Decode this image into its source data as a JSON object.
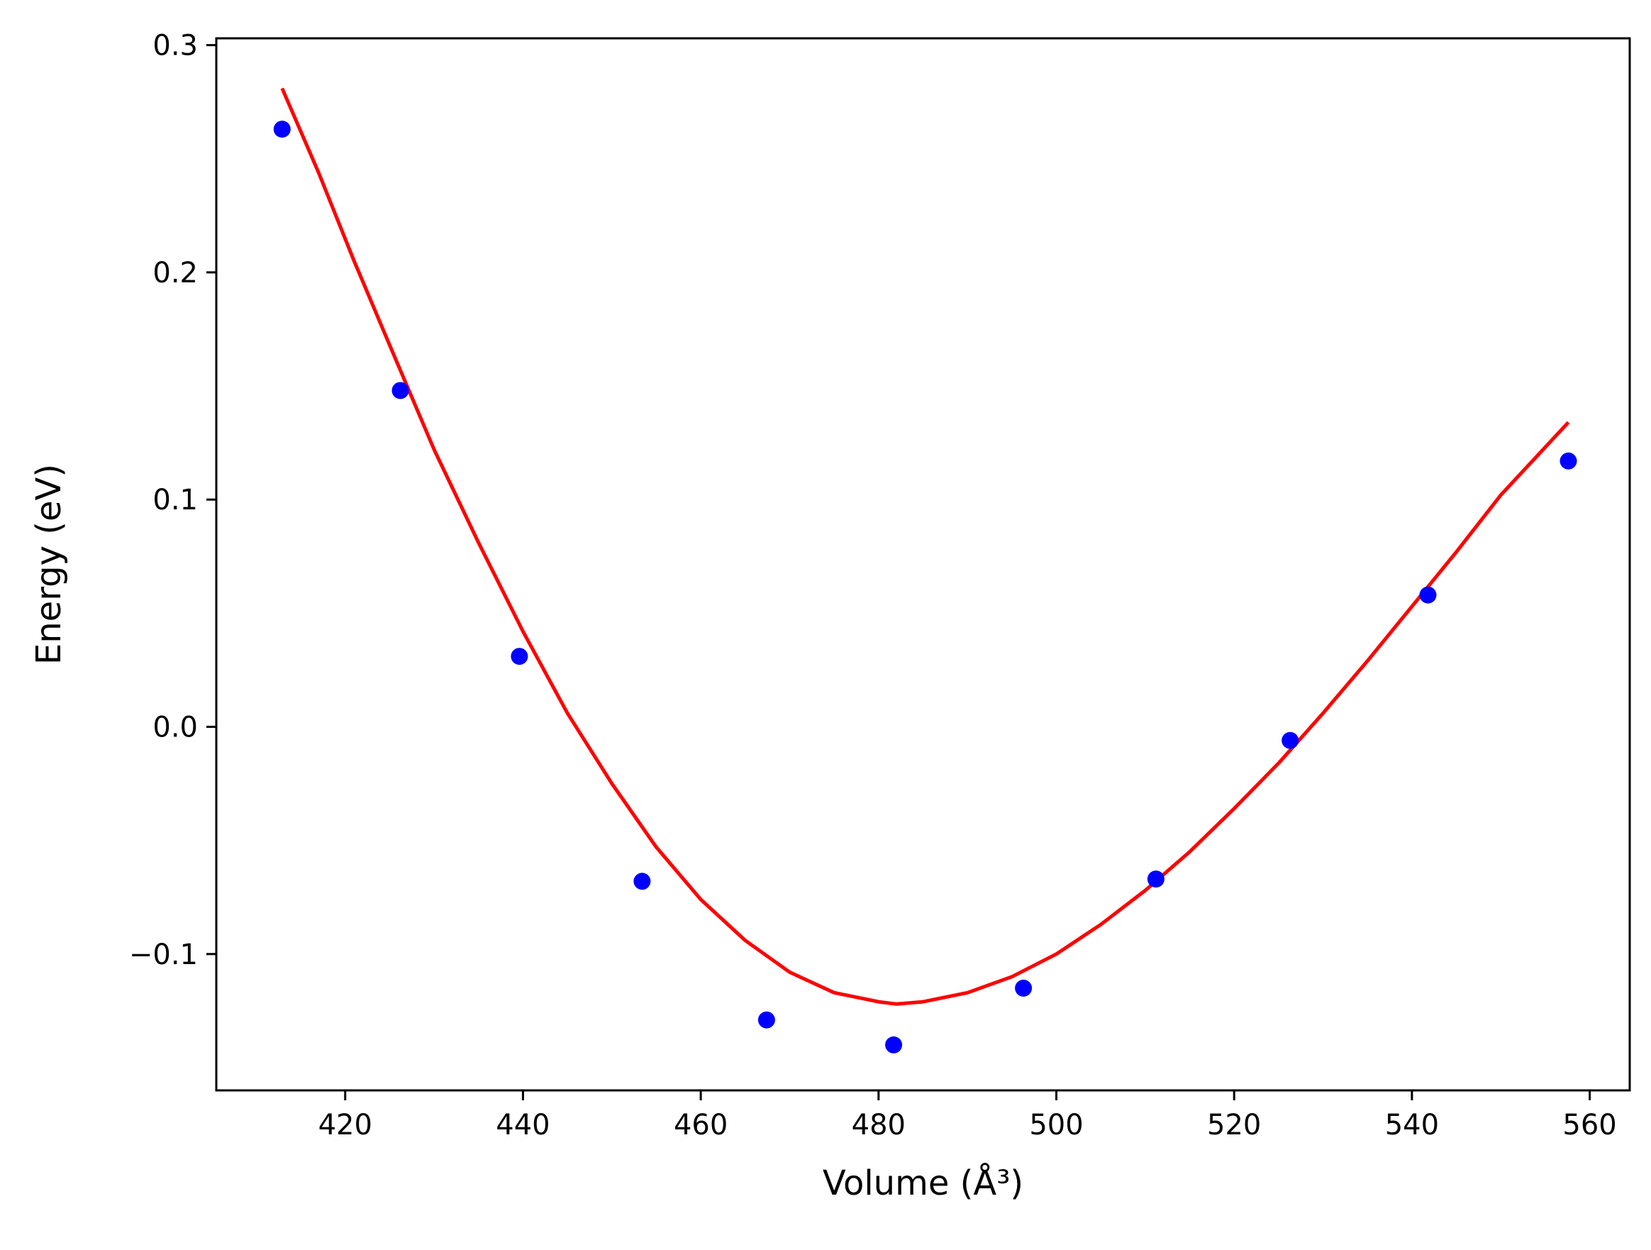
{
  "chart_data": {
    "type": "scatter",
    "title": "",
    "xlabel": "Volume (Å³)",
    "ylabel": "Energy (eV)",
    "xlim": [
      405.5,
      564.5
    ],
    "ylim": [
      -0.16,
      0.303
    ],
    "grid": false,
    "x_ticks": [
      420,
      440,
      460,
      480,
      500,
      520,
      540,
      560
    ],
    "x_tick_labels": [
      "420",
      "440",
      "460",
      "480",
      "500",
      "520",
      "540",
      "560"
    ],
    "y_ticks": [
      -0.1,
      0.0,
      0.1,
      0.2,
      0.3
    ],
    "y_tick_labels": [
      "−0.1",
      "0.0",
      "0.1",
      "0.2",
      "0.3"
    ],
    "colors": {
      "points": "#0000ff",
      "fit": "#ff0000"
    },
    "series": [
      {
        "kind": "scatter",
        "x": [
          412.9,
          426.2,
          439.6,
          453.4,
          467.4,
          481.7,
          496.3,
          511.2,
          526.3,
          541.8,
          557.6
        ],
        "y": [
          0.263,
          0.148,
          0.031,
          -0.068,
          -0.129,
          -0.14,
          -0.115,
          -0.067,
          -0.006,
          0.058,
          0.117
        ]
      },
      {
        "kind": "line",
        "x": [
          412.9,
          417.0,
          421.0,
          425.0,
          430.0,
          435.0,
          440.0,
          445.0,
          450.0,
          455.0,
          460.0,
          465.0,
          470.0,
          475.0,
          480.0,
          482.0,
          485.0,
          490.0,
          495.0,
          500.0,
          505.0,
          510.0,
          515.0,
          520.0,
          525.0,
          530.0,
          535.0,
          540.0,
          545.0,
          550.0,
          557.6
        ],
        "y": [
          0.281,
          0.244,
          0.205,
          0.168,
          0.122,
          0.081,
          0.042,
          0.006,
          -0.025,
          -0.053,
          -0.076,
          -0.094,
          -0.108,
          -0.117,
          -0.121,
          -0.122,
          -0.121,
          -0.117,
          -0.11,
          -0.1,
          -0.087,
          -0.072,
          -0.055,
          -0.036,
          -0.016,
          0.006,
          0.029,
          0.053,
          0.077,
          0.102,
          0.134
        ]
      }
    ]
  }
}
